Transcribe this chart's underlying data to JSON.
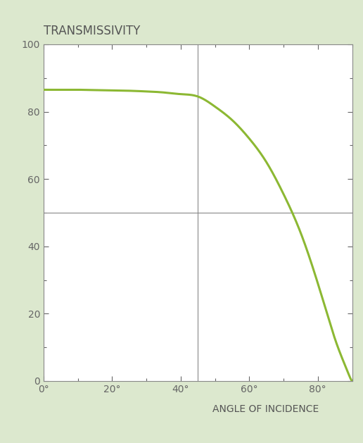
{
  "title": "TRANSMISSIVITY",
  "xlabel": "ANGLE OF INCIDENCE",
  "background_color": "#dce8ce",
  "plot_bg_color": "#ffffff",
  "line_color": "#8cb833",
  "line_width": 2.2,
  "xlim": [
    0,
    90
  ],
  "ylim": [
    0,
    100
  ],
  "xticks": [
    0,
    20,
    40,
    60,
    80
  ],
  "yticks": [
    0,
    20,
    40,
    60,
    80,
    100
  ],
  "grid_color": "#888888",
  "special_vline": 45,
  "special_hline": 50,
  "title_fontsize": 12,
  "label_fontsize": 10,
  "tick_fontsize": 10,
  "tick_color": "#666666",
  "figsize": [
    5.16,
    6.29
  ],
  "dpi": 100,
  "curve_points_x": [
    0,
    5,
    10,
    15,
    20,
    25,
    30,
    35,
    40,
    45,
    50,
    55,
    60,
    65,
    70,
    75,
    80,
    83,
    85,
    87,
    88,
    89,
    89.5,
    90
  ],
  "curve_points_y": [
    86.5,
    86.5,
    86.5,
    86.4,
    86.3,
    86.2,
    86.0,
    85.7,
    85.2,
    84.5,
    81.5,
    77.5,
    72.0,
    65.0,
    55.5,
    44.0,
    29.0,
    19.0,
    12.5,
    7.0,
    4.5,
    2.0,
    0.8,
    0
  ]
}
